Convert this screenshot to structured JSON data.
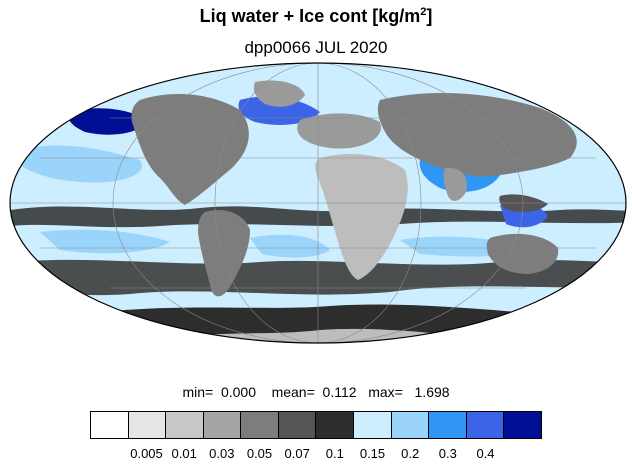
{
  "title_main": "Liq water + Ice cont [kg/m",
  "title_sup": "2",
  "title_end": "]",
  "subtitle": "dpp0066 JUL 2020",
  "stats": {
    "min_label": "min=",
    "min_value": "0.000",
    "mean_label": "mean=",
    "mean_value": "0.112",
    "max_label": "max=",
    "max_value": "1.698"
  },
  "colorbar": {
    "colors": [
      "#ffffff",
      "#e6e6e6",
      "#c8c8c8",
      "#a5a5a5",
      "#7d7d7d",
      "#555555",
      "#2d2d2d",
      "#cdeeff",
      "#9ad4fa",
      "#2f96f5",
      "#3c64e6",
      "#000f96"
    ],
    "ticks": [
      "0.005",
      "0.01",
      "0.03",
      "0.05",
      "0.07",
      "0.1",
      "0.15",
      "0.2",
      "0.3",
      "0.4"
    ]
  },
  "map": {
    "projection": "mollweide",
    "background_color": "#cdeeff",
    "land_colors": [
      "#bdbdbd",
      "#7d7d7d",
      "#3a3a3a"
    ],
    "cloud_colors": [
      "#9ad4fa",
      "#3c64e6",
      "#000f96",
      "#2d2d2d"
    ]
  }
}
